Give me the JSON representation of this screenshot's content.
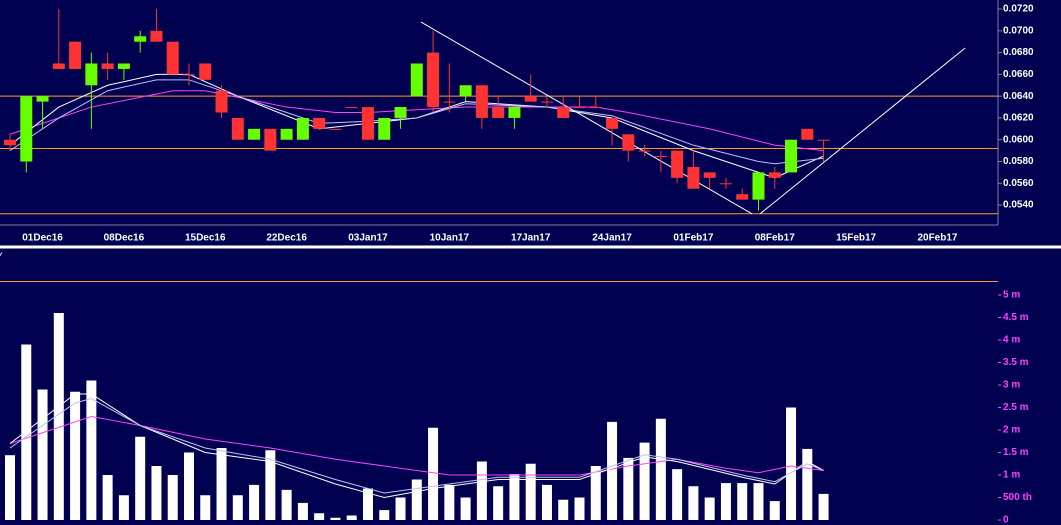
{
  "chart_data": {
    "type": "candlestick",
    "categories": [
      null,
      null,
      "01Dec16",
      null,
      null,
      null,
      null,
      "08Dec16",
      null,
      null,
      null,
      null,
      "15Dec16",
      null,
      null,
      null,
      null,
      "22Dec16",
      null,
      null,
      null,
      null,
      "03Jan17",
      null,
      null,
      null,
      null,
      "10Jan17",
      null,
      null,
      null,
      null,
      "17Jan17",
      null,
      null,
      null,
      null,
      "24Jan17",
      null,
      null,
      null,
      null,
      "01Feb17",
      null,
      null,
      null,
      null,
      "08Feb17",
      null,
      null,
      null,
      null,
      "15Feb17",
      null,
      null,
      null,
      null,
      "20Feb17",
      null,
      null,
      null
    ],
    "open": [
      0.06,
      0.058,
      0.0635,
      0.067,
      0.069,
      0.065,
      0.067,
      0.0665,
      0.069,
      0.07,
      0.069,
      0.066,
      0.067,
      0.0645,
      0.062,
      0.06,
      0.061,
      0.06,
      0.06,
      0.062,
      0.061,
      0.063,
      0.063,
      0.06,
      0.062,
      0.064,
      0.068,
      0.0635,
      0.064,
      0.065,
      0.063,
      0.062,
      0.064,
      0.0635,
      0.063,
      0.063,
      0.063,
      0.062,
      0.0605,
      0.059,
      0.0585,
      0.059,
      0.0575,
      0.057,
      0.056,
      0.055,
      0.0545,
      0.057,
      0.057,
      0.061,
      0.06,
      null,
      null,
      null,
      null,
      null,
      null,
      null,
      null,
      null,
      null
    ],
    "high": [
      0.0605,
      0.064,
      0.064,
      0.072,
      0.069,
      0.068,
      0.068,
      0.067,
      0.07,
      0.072,
      0.069,
      0.067,
      0.067,
      0.065,
      0.062,
      0.061,
      0.061,
      0.061,
      0.062,
      0.062,
      0.061,
      0.063,
      0.063,
      0.062,
      0.063,
      0.067,
      0.07,
      0.067,
      0.065,
      0.065,
      0.064,
      0.063,
      0.066,
      0.064,
      0.064,
      0.064,
      0.064,
      0.062,
      0.0605,
      0.0595,
      0.059,
      0.059,
      0.059,
      0.057,
      0.0565,
      0.0555,
      0.057,
      0.0575,
      0.06,
      0.061,
      0.06,
      null,
      null,
      null,
      null,
      null,
      null,
      null,
      null,
      null,
      null
    ],
    "low": [
      0.059,
      0.057,
      0.061,
      0.0665,
      0.0665,
      0.061,
      0.0655,
      0.0655,
      0.068,
      0.069,
      0.066,
      0.065,
      0.0655,
      0.062,
      0.06,
      0.06,
      0.059,
      0.06,
      0.06,
      0.061,
      0.061,
      0.063,
      0.06,
      0.06,
      0.061,
      0.064,
      0.0625,
      0.0625,
      0.0635,
      0.061,
      0.062,
      0.061,
      0.0635,
      0.063,
      0.062,
      0.063,
      0.063,
      0.0595,
      0.058,
      0.0585,
      0.057,
      0.056,
      0.0555,
      0.0555,
      0.0555,
      0.0545,
      0.0535,
      0.0555,
      0.057,
      0.06,
      0.058,
      null,
      null,
      null,
      null,
      null,
      null,
      null,
      null,
      null,
      null
    ],
    "close": [
      0.0595,
      0.064,
      0.064,
      0.0665,
      0.0665,
      0.067,
      0.0665,
      0.067,
      0.0695,
      0.069,
      0.066,
      0.066,
      0.0655,
      0.0625,
      0.06,
      0.061,
      0.059,
      0.061,
      0.062,
      0.061,
      0.061,
      0.063,
      0.06,
      0.062,
      0.063,
      0.067,
      0.063,
      0.0635,
      0.065,
      0.062,
      0.062,
      0.063,
      0.0635,
      0.0635,
      0.062,
      0.063,
      0.063,
      0.061,
      0.059,
      0.059,
      0.0585,
      0.0565,
      0.0555,
      0.0565,
      0.056,
      0.0545,
      0.057,
      0.0565,
      0.06,
      0.06,
      0.06,
      null,
      null,
      null,
      null,
      null,
      null,
      null,
      null,
      null,
      null
    ],
    "up_color": "#66ff00",
    "down_color": "#ff3333",
    "xlim": [
      -0.615,
      60.72
    ],
    "ylim": [
      0.05217,
      0.07283
    ],
    "yticks": [
      {
        "value": 0.054,
        "label": "0.0540"
      },
      {
        "value": 0.056,
        "label": "0.0560"
      },
      {
        "value": 0.058,
        "label": "0.0580"
      },
      {
        "value": 0.06,
        "label": "0.0600"
      },
      {
        "value": 0.062,
        "label": "0.0620"
      },
      {
        "value": 0.064,
        "label": "0.0640"
      },
      {
        "value": 0.066,
        "label": "0.0660"
      },
      {
        "value": 0.068,
        "label": "0.0680"
      },
      {
        "value": 0.07,
        "label": "0.0700"
      },
      {
        "value": 0.072,
        "label": "0.0720"
      }
    ],
    "hline_color": "#ff9a2e",
    "hlines": [
      0.064,
      0.0592,
      0.0532
    ],
    "trendline_color": "#ffffff",
    "trendlines": [
      {
        "x": [
          25.26,
          45.6
        ],
        "values": [
          0.0708,
          0.0532
        ]
      },
      {
        "x": [
          46.1,
          58.7
        ],
        "values": [
          0.0532,
          0.06842
        ]
      }
    ],
    "price_lines": [
      {
        "color": "#ff40ff",
        "x": [
          0,
          5,
          10,
          12,
          17,
          20,
          22,
          28,
          36,
          38,
          43,
          47,
          50
        ],
        "values": [
          0.0605,
          0.063,
          0.0645,
          0.0645,
          0.063,
          0.0625,
          0.0625,
          0.063,
          0.063,
          0.0625,
          0.061,
          0.0595,
          0.059
        ]
      },
      {
        "color": "#ffffff",
        "x": [
          0,
          3,
          6,
          9,
          11,
          14,
          19,
          22,
          25,
          28,
          33,
          37,
          42,
          46,
          47,
          50
        ],
        "values": [
          0.0595,
          0.063,
          0.065,
          0.066,
          0.066,
          0.064,
          0.061,
          0.0615,
          0.062,
          0.0635,
          0.063,
          0.062,
          0.059,
          0.057,
          0.0565,
          0.0585
        ]
      },
      {
        "color": "#c0c0ff",
        "x": [
          0,
          3,
          6,
          9,
          11,
          14,
          19,
          22,
          25,
          28,
          33,
          37,
          42,
          46,
          47,
          50
        ],
        "values": [
          0.059,
          0.062,
          0.0645,
          0.0655,
          0.0655,
          0.064,
          0.0615,
          0.0617,
          0.062,
          0.0633,
          0.063,
          0.0622,
          0.0595,
          0.058,
          0.0578,
          0.0583
        ]
      }
    ],
    "volume": {
      "label": "Y",
      "color": "#ffffff",
      "tick_color": "#ff40ff",
      "values": [
        1440000,
        3900000,
        2900000,
        4600000,
        2850000,
        3100000,
        1000000,
        550000,
        1850000,
        1200000,
        1000000,
        1500000,
        550000,
        1600000,
        550000,
        780000,
        1550000,
        670000,
        380000,
        150000,
        50000,
        100000,
        700000,
        220000,
        500000,
        900000,
        2050000,
        780000,
        500000,
        1300000,
        750000,
        1020000,
        1250000,
        780000,
        450000,
        500000,
        1200000,
        2180000,
        1380000,
        1720000,
        2250000,
        1130000,
        750000,
        500000,
        820000,
        820000,
        820000,
        420000,
        2500000,
        1580000,
        580000,
        null,
        null,
        null,
        null,
        null,
        null,
        null,
        null,
        null,
        null
      ],
      "ylim": [
        0,
        5600000
      ],
      "yticks": [
        0,
        {
          "value": 500000,
          "label": "500 th"
        },
        {
          "value": 1000000,
          "label": "1 m"
        },
        {
          "value": 1500000,
          "label": "1.5 m"
        },
        {
          "value": 2000000,
          "label": "2 m"
        },
        {
          "value": 2500000,
          "label": "2.5 m"
        },
        {
          "value": 3000000,
          "label": "3 m"
        },
        {
          "value": 3500000,
          "label": "3.5 m"
        },
        {
          "value": 4000000,
          "label": "4 m"
        },
        {
          "value": 4500000,
          "label": "4.5 m"
        },
        {
          "value": 5000000,
          "label": "5 m"
        }
      ],
      "hlines": [
        5300000
      ],
      "lines": [
        {
          "color": "#ff40ff",
          "x": [
            0,
            5,
            8,
            12,
            16,
            20,
            23,
            27,
            35,
            38,
            41,
            44,
            46,
            48,
            50
          ],
          "values": [
            1700000,
            2300000,
            2100000,
            1800000,
            1600000,
            1350000,
            1200000,
            1000000,
            1000000,
            1200000,
            1350000,
            1150000,
            1050000,
            1200000,
            1100000
          ]
        },
        {
          "color": "#ffffff",
          "x": [
            0,
            4,
            5,
            8,
            12,
            16,
            20,
            23,
            26,
            30,
            35,
            39,
            41,
            45,
            47,
            49,
            50
          ],
          "values": [
            1700000,
            2800000,
            2800000,
            2100000,
            1500000,
            1300000,
            800000,
            500000,
            700000,
            900000,
            900000,
            1400000,
            1300000,
            950000,
            800000,
            1300000,
            1100000
          ]
        },
        {
          "color": "#c0c0ff",
          "x": [
            0,
            4,
            5,
            8,
            12,
            16,
            20,
            23,
            26,
            30,
            35,
            39,
            41,
            45,
            47,
            49,
            50
          ],
          "values": [
            1600000,
            2600000,
            2700000,
            2100000,
            1600000,
            1350000,
            900000,
            600000,
            750000,
            950000,
            950000,
            1450000,
            1350000,
            1000000,
            850000,
            1250000,
            1100000
          ]
        }
      ]
    }
  }
}
